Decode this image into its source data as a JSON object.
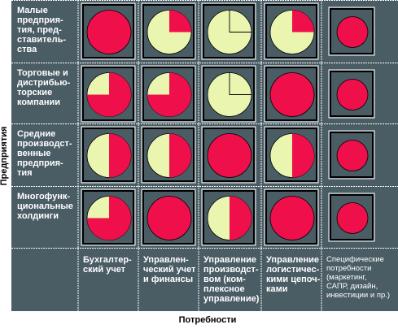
{
  "axes": {
    "y_label": "Предприятия",
    "x_label": "Потребности"
  },
  "rows": [
    {
      "label": "Малые\nпредприя-\nтия, пред-\nставитель-\nства"
    },
    {
      "label": "Торговые и\nдистрибью-\nторские\nкомпании"
    },
    {
      "label": "Средние\nпроизводст-\nвенные\nпредприя-\nтия"
    },
    {
      "label": "Многофунк-\nциональные\nхолдинги"
    }
  ],
  "columns": [
    {
      "label": "Бухгалтер-\nский учет"
    },
    {
      "label": "Управлен-\nческий учет\nи финансы"
    },
    {
      "label": "Управление\nпроизводст-\nвом (ком-\nплексное\nуправление)"
    },
    {
      "label": "Управление\nлогистичес-\nкими цепоч-\nками"
    },
    {
      "label": "Специфические\nпотребности\n(маркетинг,\nСАПР, дизайн,\nинвестиции и пр.)"
    }
  ],
  "coverage": [
    [
      1.0,
      0.25,
      0.0,
      0.25,
      1.0
    ],
    [
      0.75,
      0.75,
      0.0,
      1.0,
      1.0
    ],
    [
      0.5,
      0.5,
      1.0,
      0.5,
      1.0
    ],
    [
      0.75,
      1.0,
      0.5,
      1.0,
      1.0
    ]
  ],
  "colors": {
    "background": "#4a5c64",
    "red": "#ef0f4a",
    "cream": "#eaf5b0",
    "frame": "#000000",
    "divider": "#ffffff"
  }
}
